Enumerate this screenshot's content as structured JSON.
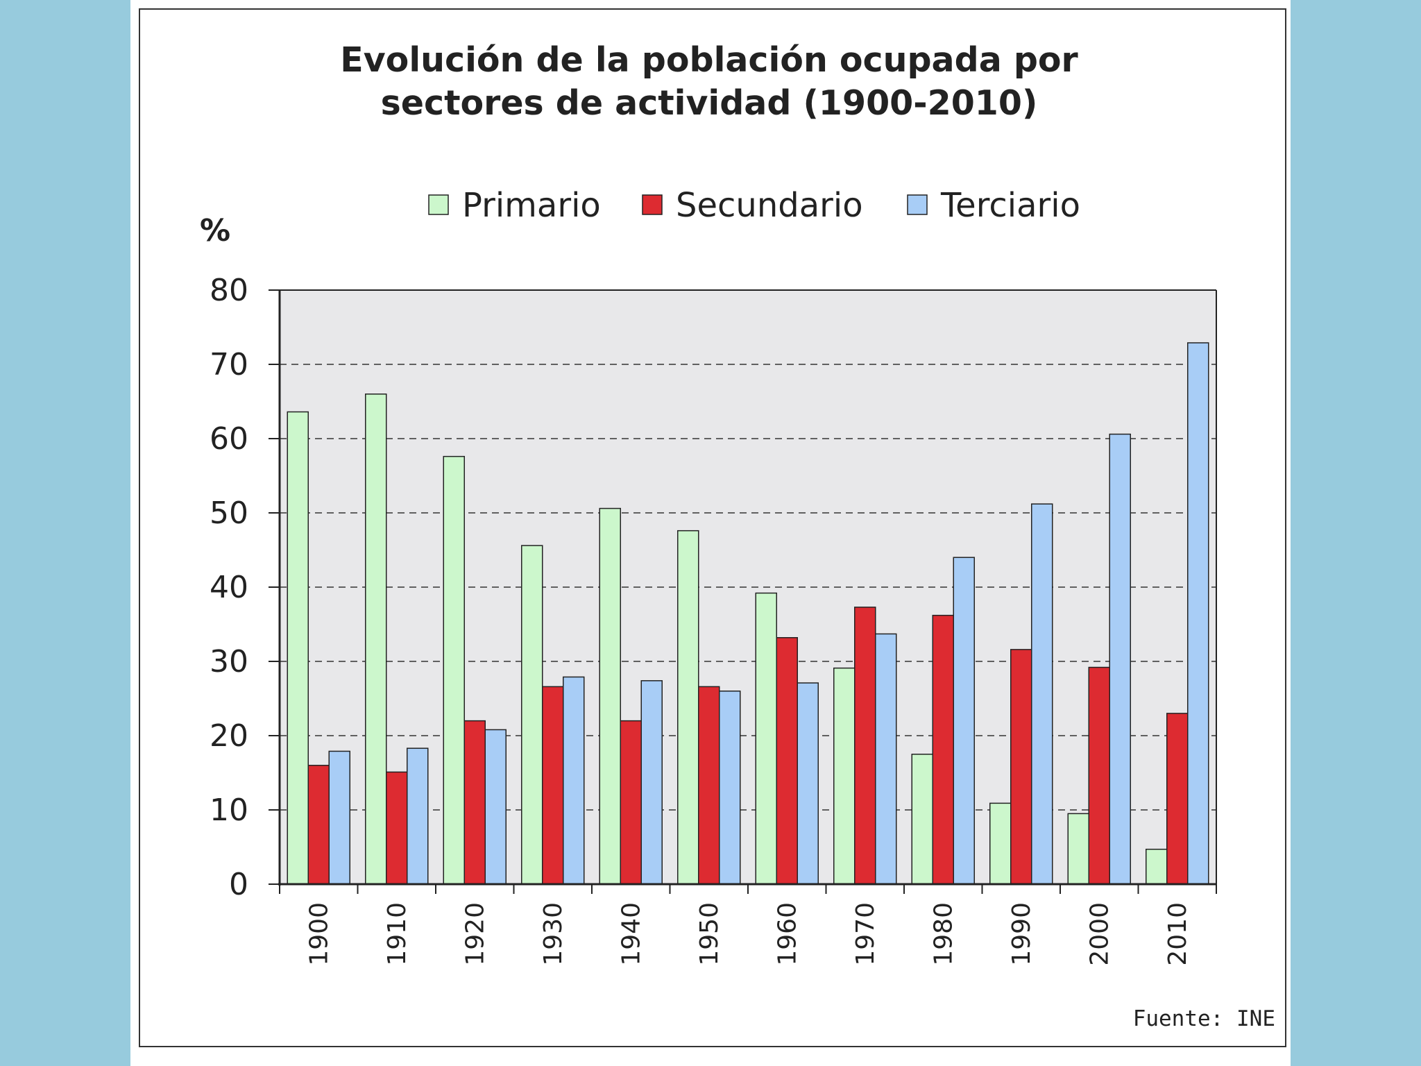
{
  "chart_data": {
    "type": "bar",
    "title_lines": [
      "Evolución de la población ocupada por",
      "sectores de actividad (1900-2010)"
    ],
    "ylabel": "%",
    "xlabel": "",
    "ylim": [
      0,
      80
    ],
    "yticks": [
      0,
      10,
      20,
      30,
      40,
      50,
      60,
      70,
      80
    ],
    "grid": "horizontal dashed",
    "legend_position": "top",
    "categories": [
      "1900",
      "1910",
      "1920",
      "1930",
      "1940",
      "1950",
      "1960",
      "1970",
      "1980",
      "1990",
      "2000",
      "2010"
    ],
    "series": [
      {
        "name": "Primario",
        "color": "#ccf7cc",
        "values": [
          63.6,
          66.0,
          57.6,
          45.6,
          50.6,
          47.6,
          39.2,
          29.1,
          17.5,
          10.9,
          9.5,
          4.7
        ]
      },
      {
        "name": "Secundario",
        "color": "#dd2b31",
        "values": [
          16.0,
          15.1,
          22.0,
          26.6,
          22.0,
          26.6,
          33.2,
          37.3,
          36.2,
          31.6,
          29.2,
          23.0
        ]
      },
      {
        "name": "Terciario",
        "color": "#a8cdf6",
        "values": [
          17.9,
          18.3,
          20.8,
          27.9,
          27.4,
          26.0,
          27.1,
          33.7,
          44.0,
          51.2,
          60.6,
          72.9
        ]
      }
    ],
    "source": "Fuente: INE"
  }
}
